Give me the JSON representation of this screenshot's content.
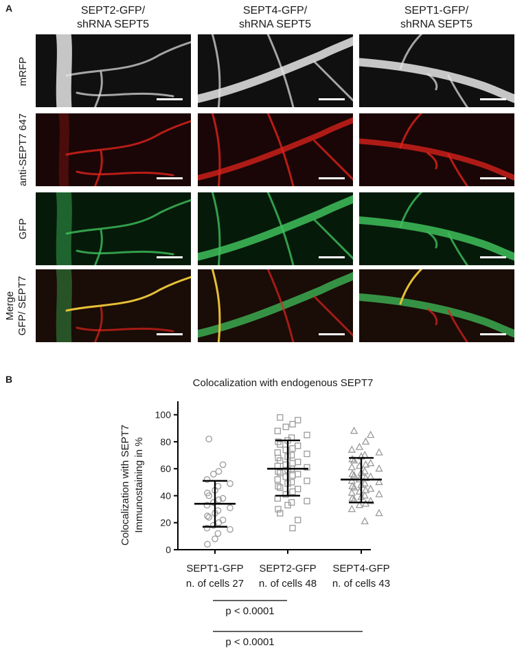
{
  "panel_a": {
    "letter": "A",
    "columns": [
      {
        "line1": "SEPT2-GFP/",
        "line2": "shRNA SEPT5"
      },
      {
        "line1": "SEPT4-GFP/",
        "line2": "shRNA SEPT5"
      },
      {
        "line1": "SEPT1-GFP/",
        "line2": "shRNA SEPT5"
      }
    ],
    "rows": [
      {
        "label1": "mRFP",
        "label2": "",
        "channel": "gray"
      },
      {
        "label1": "anti-SEPT7 647",
        "label2": "",
        "channel": "red"
      },
      {
        "label1": "GFP",
        "label2": "",
        "channel": "green"
      },
      {
        "label1": "Merge",
        "label2": "GFP/ SEPT7",
        "channel": "merge"
      }
    ],
    "channel_colors": {
      "gray": "#e6e6e6",
      "red": "#e0231c",
      "green": "#3fbf5a",
      "merge_yellow": "#e9d43a"
    }
  },
  "panel_b": {
    "letter": "B",
    "significance": [
      {
        "text": "p < 0.0001"
      },
      {
        "text": "p < 0.0001"
      }
    ]
  },
  "chart_data": {
    "type": "scatter",
    "title": "Colocalization with endogenous SEPT7",
    "ylabel_line1": "Colocalization with SEPT7",
    "ylabel_line2": "Immunostaining in %",
    "ylim": [
      0,
      110
    ],
    "yticks": [
      0,
      20,
      40,
      60,
      80,
      100
    ],
    "grid": false,
    "marker_color": "#9a9a9a",
    "errorbar_color": "#000000",
    "categories": [
      "SEPT1-GFP",
      "SEPT2-GFP",
      "SEPT4-GFP"
    ],
    "category_sublabels": [
      "n. of cells 27",
      "n. of cells 48",
      "n. of cells 43"
    ],
    "series": [
      {
        "marker": "circle",
        "mean": 34,
        "sd_low": 17,
        "sd_high": 51,
        "values": [
          82,
          63,
          58,
          56,
          52,
          49,
          47,
          44,
          42,
          40,
          38,
          37,
          35,
          33,
          31,
          29,
          27,
          25,
          24,
          22,
          20,
          18,
          16,
          15,
          12,
          8,
          4
        ]
      },
      {
        "marker": "square",
        "mean": 60,
        "sd_low": 40,
        "sd_high": 81,
        "values": [
          98,
          96,
          93,
          91,
          88,
          85,
          83,
          81,
          80,
          78,
          77,
          75,
          74,
          72,
          71,
          70,
          69,
          68,
          66,
          65,
          64,
          63,
          62,
          61,
          60,
          59,
          58,
          57,
          56,
          55,
          54,
          52,
          51,
          50,
          49,
          47,
          46,
          45,
          43,
          41,
          38,
          36,
          35,
          33,
          30,
          27,
          22,
          16
        ]
      },
      {
        "marker": "triangle",
        "mean": 52,
        "sd_low": 35,
        "sd_high": 68,
        "values": [
          88,
          85,
          80,
          76,
          74,
          72,
          70,
          69,
          67,
          66,
          64,
          63,
          62,
          61,
          60,
          58,
          57,
          56,
          55,
          54,
          53,
          52,
          51,
          50,
          49,
          48,
          47,
          46,
          45,
          44,
          43,
          42,
          41,
          40,
          39,
          38,
          37,
          36,
          34,
          33,
          30,
          27,
          21
        ]
      }
    ]
  }
}
